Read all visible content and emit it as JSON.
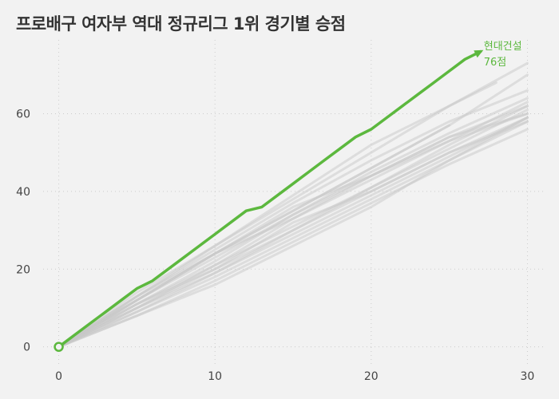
{
  "title": "프로배구 여자부 역대 정규리그 1위 경기별 승점",
  "colors": {
    "highlight": "#5cb83e",
    "background_series": "#c8c8c8",
    "grid": "#cccccc",
    "background": "#f2f2f2"
  },
  "chart_data": {
    "type": "line",
    "title": "프로배구 여자부 역대 정규리그 1위 경기별 승점",
    "xlabel": "",
    "ylabel": "",
    "xlim": [
      -1,
      31
    ],
    "ylim": [
      -5,
      79
    ],
    "x_ticks": [
      0,
      10,
      20,
      30
    ],
    "y_ticks": [
      0,
      20,
      40,
      60
    ],
    "grid": true,
    "grid_style": "dotted",
    "highlight_series": {
      "name": "현대건설",
      "label_lines": [
        "현대건설",
        "76점"
      ],
      "x": [
        0,
        1,
        2,
        3,
        4,
        5,
        6,
        7,
        8,
        9,
        10,
        11,
        12,
        13,
        14,
        15,
        16,
        17,
        18,
        19,
        20,
        21,
        22,
        23,
        24,
        25,
        26,
        27
      ],
      "y": [
        0,
        3,
        6,
        9,
        12,
        15,
        17,
        20,
        23,
        26,
        29,
        32,
        35,
        36,
        39,
        42,
        45,
        48,
        51,
        54,
        56,
        59,
        62,
        65,
        68,
        71,
        74,
        76
      ]
    },
    "background_series": [
      {
        "x": [
          0,
          5,
          10,
          15,
          20,
          25,
          30
        ],
        "y": [
          0,
          12,
          24,
          36,
          44,
          54,
          62
        ]
      },
      {
        "x": [
          0,
          5,
          10,
          15,
          20,
          25,
          30
        ],
        "y": [
          0,
          10,
          20,
          32,
          40,
          50,
          58
        ]
      },
      {
        "x": [
          0,
          5,
          10,
          15,
          20,
          25,
          30
        ],
        "y": [
          0,
          11,
          22,
          34,
          44,
          54,
          60
        ]
      },
      {
        "x": [
          0,
          5,
          10,
          15,
          20,
          25,
          30
        ],
        "y": [
          0,
          13,
          25,
          37,
          48,
          58,
          66
        ]
      },
      {
        "x": [
          0,
          5,
          10,
          15,
          20,
          25,
          30
        ],
        "y": [
          0,
          9,
          18,
          28,
          38,
          48,
          58
        ]
      },
      {
        "x": [
          0,
          5,
          10,
          15,
          20,
          25,
          30
        ],
        "y": [
          0,
          12,
          23,
          34,
          45,
          55,
          64
        ]
      },
      {
        "x": [
          0,
          5,
          10,
          15,
          20,
          25,
          30
        ],
        "y": [
          0,
          14,
          26,
          38,
          50,
          62,
          73
        ]
      },
      {
        "x": [
          0,
          5,
          10,
          15,
          20,
          25,
          30
        ],
        "y": [
          0,
          8,
          17,
          27,
          37,
          47,
          56
        ]
      },
      {
        "x": [
          0,
          5,
          10,
          15,
          20,
          25,
          30
        ],
        "y": [
          0,
          11,
          21,
          31,
          41,
          51,
          61
        ]
      },
      {
        "x": [
          0,
          5,
          10,
          15,
          20,
          25,
          30
        ],
        "y": [
          0,
          10,
          19,
          29,
          39,
          49,
          59
        ]
      },
      {
        "x": [
          0,
          5,
          10,
          15,
          20,
          25,
          30
        ],
        "y": [
          0,
          12,
          24,
          35,
          46,
          57,
          70
        ]
      },
      {
        "x": [
          0,
          5,
          10,
          15,
          20,
          25,
          30
        ],
        "y": [
          0,
          9,
          19,
          30,
          41,
          52,
          62
        ]
      },
      {
        "x": [
          0,
          5,
          10,
          15,
          20,
          25,
          30
        ],
        "y": [
          0,
          13,
          24,
          33,
          43,
          53,
          63
        ]
      },
      {
        "x": [
          0,
          5,
          10,
          15,
          20,
          25
        ],
        "y": [
          0,
          12,
          24,
          35,
          46,
          57
        ]
      },
      {
        "x": [
          0,
          5,
          10,
          15,
          20,
          25,
          28
        ],
        "y": [
          0,
          13,
          26,
          39,
          52,
          62,
          68
        ]
      },
      {
        "x": [
          0,
          5,
          10,
          15,
          20,
          25,
          30
        ],
        "y": [
          0,
          10,
          21,
          33,
          44,
          53,
          60
        ]
      },
      {
        "x": [
          0,
          5,
          10,
          15,
          20,
          25,
          30
        ],
        "y": [
          0,
          11,
          20,
          30,
          40,
          50,
          59
        ]
      },
      {
        "x": [
          0,
          5,
          10,
          15,
          20,
          25,
          30
        ],
        "y": [
          0,
          8,
          16,
          26,
          36,
          48,
          59
        ]
      }
    ]
  }
}
